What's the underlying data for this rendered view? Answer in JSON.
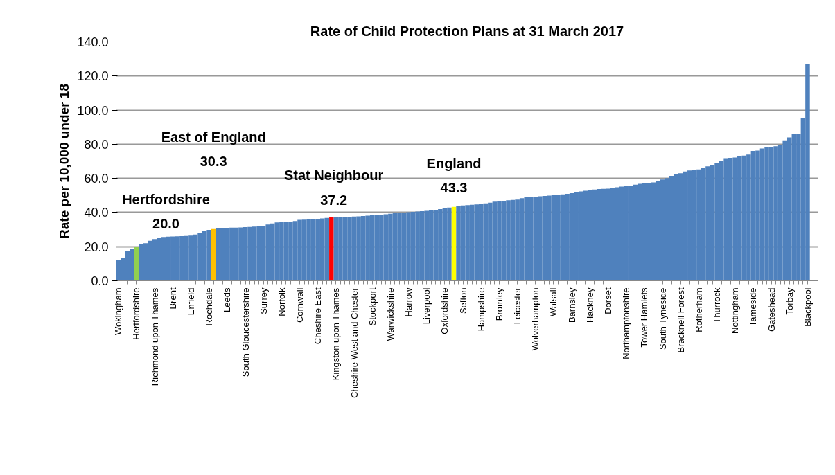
{
  "chart_data": {
    "type": "bar",
    "title": "Rate of Child Protection Plans at 31 March 2017",
    "ylabel": "Rate per 10,000 under 18",
    "categories": [
      "Wokingham",
      null,
      null,
      null,
      "Hertfordshire",
      null,
      null,
      null,
      "Richmond upon Thames",
      null,
      null,
      null,
      "Brent",
      null,
      null,
      null,
      "Enfield",
      null,
      null,
      null,
      "Rochdale",
      null,
      null,
      null,
      "Leeds",
      null,
      null,
      null,
      "South Gloucestershire",
      null,
      null,
      null,
      "Surrey",
      null,
      null,
      null,
      "Norfolk",
      null,
      null,
      null,
      "Cornwall",
      null,
      null,
      null,
      "Cheshire East",
      null,
      null,
      null,
      "Kingston upon Thames",
      null,
      null,
      null,
      "Cheshire West and Chester",
      null,
      null,
      null,
      "Stockport",
      null,
      null,
      null,
      "Warwickshire",
      null,
      null,
      null,
      "Harrow",
      null,
      null,
      null,
      "Liverpool",
      null,
      null,
      null,
      "Oxfordshire",
      null,
      null,
      null,
      "Sefton",
      null,
      null,
      null,
      "Hampshire",
      null,
      null,
      null,
      "Bromley",
      null,
      null,
      null,
      "Leicester",
      null,
      null,
      null,
      "Wolverhampton",
      null,
      null,
      null,
      "Walsall",
      null,
      null,
      null,
      "Barnsley",
      null,
      null,
      null,
      "Hackney",
      null,
      null,
      null,
      "Dorset",
      null,
      null,
      null,
      "Northamptonshire",
      null,
      null,
      null,
      "Tower Hamlets",
      null,
      null,
      null,
      "South Tyneside",
      null,
      null,
      null,
      "Bracknell Forest",
      null,
      null,
      null,
      "Rotherham",
      null,
      null,
      null,
      "Thurrock",
      null,
      null,
      null,
      "Nottingham",
      null,
      null,
      null,
      "Tameside",
      null,
      null,
      null,
      "Gateshead",
      null,
      null,
      null,
      "Torbay",
      null,
      null,
      null,
      "Blackpool"
    ],
    "values": [
      12.2,
      13.4,
      17.7,
      18.7,
      20.0,
      21.4,
      22.0,
      23.4,
      24.4,
      25.1,
      25.7,
      25.9,
      26.0,
      26.1,
      26.2,
      26.3,
      26.5,
      27.1,
      28.0,
      29.0,
      29.8,
      30.3,
      30.8,
      30.9,
      31.0,
      31.1,
      31.1,
      31.2,
      31.4,
      31.6,
      31.8,
      32.0,
      32.3,
      33.0,
      33.6,
      34.2,
      34.3,
      34.5,
      34.6,
      35.0,
      35.7,
      35.8,
      35.9,
      36.0,
      36.3,
      36.5,
      36.8,
      37.2,
      37.3,
      37.4,
      37.4,
      37.5,
      37.6,
      37.7,
      37.9,
      38.1,
      38.3,
      38.5,
      38.7,
      39.0,
      39.3,
      39.6,
      39.8,
      40.0,
      40.2,
      40.4,
      40.6,
      40.8,
      41.0,
      41.3,
      41.6,
      42.0,
      42.4,
      42.9,
      43.3,
      43.8,
      44.1,
      44.3,
      44.5,
      44.7,
      44.9,
      45.3,
      45.8,
      46.4,
      46.6,
      46.8,
      47.2,
      47.4,
      47.6,
      48.4,
      49.0,
      49.2,
      49.3,
      49.5,
      49.7,
      49.9,
      50.2,
      50.4,
      50.6,
      50.9,
      51.3,
      51.8,
      52.3,
      52.8,
      53.2,
      53.5,
      53.8,
      53.9,
      54.0,
      54.3,
      54.8,
      55.2,
      55.4,
      55.7,
      56.3,
      56.8,
      57.0,
      57.2,
      57.6,
      58.3,
      59.3,
      60.2,
      61.5,
      62.3,
      63.0,
      64.0,
      64.6,
      65.0,
      65.2,
      66.0,
      67.1,
      67.8,
      68.9,
      70.0,
      71.8,
      72.0,
      72.2,
      72.8,
      73.3,
      74.0,
      76.1,
      76.3,
      77.5,
      78.3,
      78.5,
      78.8,
      79.3,
      82.3,
      84.0,
      86.0,
      86.0,
      95.5,
      127.2
    ],
    "colors": [
      "#4f81bd",
      "#4f81bd",
      "#4f81bd",
      "#4f81bd",
      "#92d050",
      "#4f81bd",
      "#4f81bd",
      "#4f81bd",
      "#4f81bd",
      "#4f81bd",
      "#4f81bd",
      "#4f81bd",
      "#4f81bd",
      "#4f81bd",
      "#4f81bd",
      "#4f81bd",
      "#4f81bd",
      "#4f81bd",
      "#4f81bd",
      "#4f81bd",
      "#4f81bd",
      "#ffc000",
      "#4f81bd",
      "#4f81bd",
      "#4f81bd",
      "#4f81bd",
      "#4f81bd",
      "#4f81bd",
      "#4f81bd",
      "#4f81bd",
      "#4f81bd",
      "#4f81bd",
      "#4f81bd",
      "#4f81bd",
      "#4f81bd",
      "#4f81bd",
      "#4f81bd",
      "#4f81bd",
      "#4f81bd",
      "#4f81bd",
      "#4f81bd",
      "#4f81bd",
      "#4f81bd",
      "#4f81bd",
      "#4f81bd",
      "#4f81bd",
      "#4f81bd",
      "#ff0000",
      "#4f81bd",
      "#4f81bd",
      "#4f81bd",
      "#4f81bd",
      "#4f81bd",
      "#4f81bd",
      "#4f81bd",
      "#4f81bd",
      "#4f81bd",
      "#4f81bd",
      "#4f81bd",
      "#4f81bd",
      "#4f81bd",
      "#4f81bd",
      "#4f81bd",
      "#4f81bd",
      "#4f81bd",
      "#4f81bd",
      "#4f81bd",
      "#4f81bd",
      "#4f81bd",
      "#4f81bd",
      "#4f81bd",
      "#4f81bd",
      "#4f81bd",
      "#4f81bd",
      "#ffff00",
      "#4f81bd",
      "#4f81bd",
      "#4f81bd",
      "#4f81bd",
      "#4f81bd",
      "#4f81bd",
      "#4f81bd",
      "#4f81bd",
      "#4f81bd",
      "#4f81bd",
      "#4f81bd",
      "#4f81bd",
      "#4f81bd",
      "#4f81bd",
      "#4f81bd",
      "#4f81bd",
      "#4f81bd",
      "#4f81bd",
      "#4f81bd",
      "#4f81bd",
      "#4f81bd",
      "#4f81bd",
      "#4f81bd",
      "#4f81bd",
      "#4f81bd",
      "#4f81bd",
      "#4f81bd",
      "#4f81bd",
      "#4f81bd",
      "#4f81bd",
      "#4f81bd",
      "#4f81bd",
      "#4f81bd",
      "#4f81bd",
      "#4f81bd",
      "#4f81bd",
      "#4f81bd",
      "#4f81bd",
      "#4f81bd",
      "#4f81bd",
      "#4f81bd",
      "#4f81bd",
      "#4f81bd",
      "#4f81bd",
      "#4f81bd",
      "#4f81bd",
      "#4f81bd",
      "#4f81bd",
      "#4f81bd",
      "#4f81bd",
      "#4f81bd",
      "#4f81bd",
      "#4f81bd",
      "#4f81bd",
      "#4f81bd",
      "#4f81bd",
      "#4f81bd",
      "#4f81bd",
      "#4f81bd",
      "#4f81bd",
      "#4f81bd",
      "#4f81bd",
      "#4f81bd",
      "#4f81bd",
      "#4f81bd",
      "#4f81bd",
      "#4f81bd",
      "#4f81bd",
      "#4f81bd",
      "#4f81bd",
      "#4f81bd",
      "#4f81bd",
      "#4f81bd",
      "#4f81bd",
      "#4f81bd",
      "#4f81bd",
      "#4f81bd",
      "#4f81bd"
    ],
    "annotations": [
      "Hertfordshire\n20.0",
      "East of England\n30.3",
      "Stat Neighbour\n37.2",
      "England\n43.3"
    ],
    "ylim": [
      0,
      140
    ],
    "yticks": [
      {
        "value": 0,
        "label": "0.0"
      },
      {
        "value": 20,
        "label": "20.0"
      },
      {
        "value": 40,
        "label": "40.0"
      },
      {
        "value": 60,
        "label": "60.0"
      },
      {
        "value": 80,
        "label": "80.0"
      },
      {
        "value": 100,
        "label": "100.0"
      },
      {
        "value": 120,
        "label": "120.0"
      },
      {
        "value": 140,
        "label": "140.0"
      }
    ],
    "grid": "y"
  }
}
